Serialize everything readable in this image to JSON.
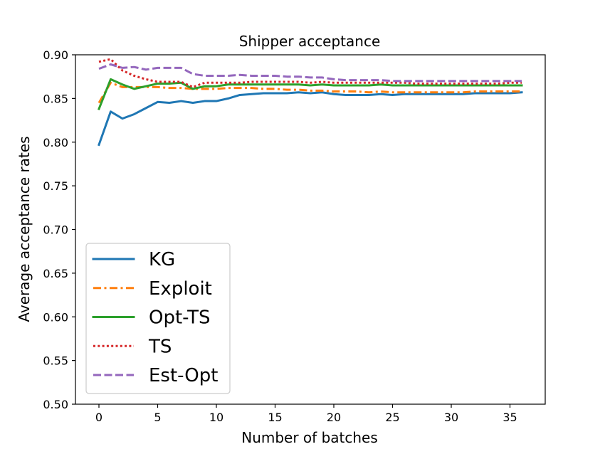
{
  "chart_data": {
    "type": "line",
    "title": "Shipper acceptance",
    "xlabel": "Number of batches",
    "ylabel": "Average acceptance rates",
    "xlim": [
      -2,
      38
    ],
    "ylim": [
      0.5,
      0.9
    ],
    "xticks": [
      0,
      5,
      10,
      15,
      20,
      25,
      30,
      35
    ],
    "yticks": [
      0.5,
      0.55,
      0.6,
      0.65,
      0.7,
      0.75,
      0.8,
      0.85,
      0.9
    ],
    "xtick_labels": [
      "0",
      "5",
      "10",
      "15",
      "20",
      "25",
      "30",
      "35"
    ],
    "ytick_labels": [
      "0.50",
      "0.55",
      "0.60",
      "0.65",
      "0.70",
      "0.75",
      "0.80",
      "0.85",
      "0.90"
    ],
    "grid": false,
    "legend_position": "lower-left",
    "x": [
      0,
      1,
      2,
      3,
      4,
      5,
      6,
      7,
      8,
      9,
      10,
      11,
      12,
      13,
      14,
      15,
      16,
      17,
      18,
      19,
      20,
      21,
      22,
      23,
      24,
      25,
      26,
      27,
      28,
      29,
      30,
      31,
      32,
      33,
      34,
      35,
      36
    ],
    "series": [
      {
        "name": "KG",
        "color": "#1f77b4",
        "dash": "solid",
        "values": [
          0.797,
          0.835,
          0.827,
          0.832,
          0.839,
          0.846,
          0.845,
          0.847,
          0.845,
          0.847,
          0.847,
          0.85,
          0.854,
          0.855,
          0.856,
          0.856,
          0.856,
          0.857,
          0.856,
          0.857,
          0.855,
          0.854,
          0.854,
          0.854,
          0.855,
          0.854,
          0.855,
          0.855,
          0.855,
          0.855,
          0.855,
          0.855,
          0.856,
          0.856,
          0.856,
          0.856,
          0.857
        ]
      },
      {
        "name": "Exploit",
        "color": "#ff7f0e",
        "dash": "dashdot",
        "values": [
          0.845,
          0.868,
          0.863,
          0.863,
          0.863,
          0.863,
          0.862,
          0.862,
          0.861,
          0.861,
          0.861,
          0.862,
          0.862,
          0.862,
          0.861,
          0.861,
          0.86,
          0.86,
          0.859,
          0.859,
          0.858,
          0.858,
          0.858,
          0.857,
          0.858,
          0.857,
          0.857,
          0.857,
          0.857,
          0.857,
          0.857,
          0.857,
          0.858,
          0.858,
          0.858,
          0.858,
          0.858
        ]
      },
      {
        "name": "Opt-TS",
        "color": "#2ca02c",
        "dash": "solid",
        "values": [
          0.838,
          0.872,
          0.866,
          0.861,
          0.864,
          0.867,
          0.867,
          0.868,
          0.861,
          0.864,
          0.864,
          0.866,
          0.866,
          0.866,
          0.866,
          0.866,
          0.866,
          0.866,
          0.865,
          0.866,
          0.865,
          0.865,
          0.865,
          0.865,
          0.866,
          0.865,
          0.865,
          0.865,
          0.865,
          0.865,
          0.865,
          0.865,
          0.865,
          0.865,
          0.865,
          0.865,
          0.865
        ]
      },
      {
        "name": "TS",
        "color": "#d62728",
        "dash": "dotted",
        "values": [
          0.892,
          0.895,
          0.882,
          0.876,
          0.872,
          0.869,
          0.869,
          0.869,
          0.863,
          0.868,
          0.868,
          0.868,
          0.868,
          0.869,
          0.869,
          0.869,
          0.869,
          0.869,
          0.868,
          0.869,
          0.868,
          0.868,
          0.868,
          0.868,
          0.868,
          0.868,
          0.868,
          0.867,
          0.867,
          0.867,
          0.867,
          0.867,
          0.867,
          0.867,
          0.867,
          0.868,
          0.868
        ]
      },
      {
        "name": "Est-Opt",
        "color": "#9467bd",
        "dash": "dashed",
        "values": [
          0.884,
          0.889,
          0.885,
          0.886,
          0.883,
          0.885,
          0.885,
          0.885,
          0.878,
          0.876,
          0.876,
          0.876,
          0.877,
          0.876,
          0.876,
          0.876,
          0.875,
          0.875,
          0.874,
          0.874,
          0.872,
          0.871,
          0.871,
          0.871,
          0.871,
          0.87,
          0.87,
          0.87,
          0.87,
          0.87,
          0.87,
          0.87,
          0.87,
          0.87,
          0.87,
          0.87,
          0.87
        ]
      }
    ]
  }
}
